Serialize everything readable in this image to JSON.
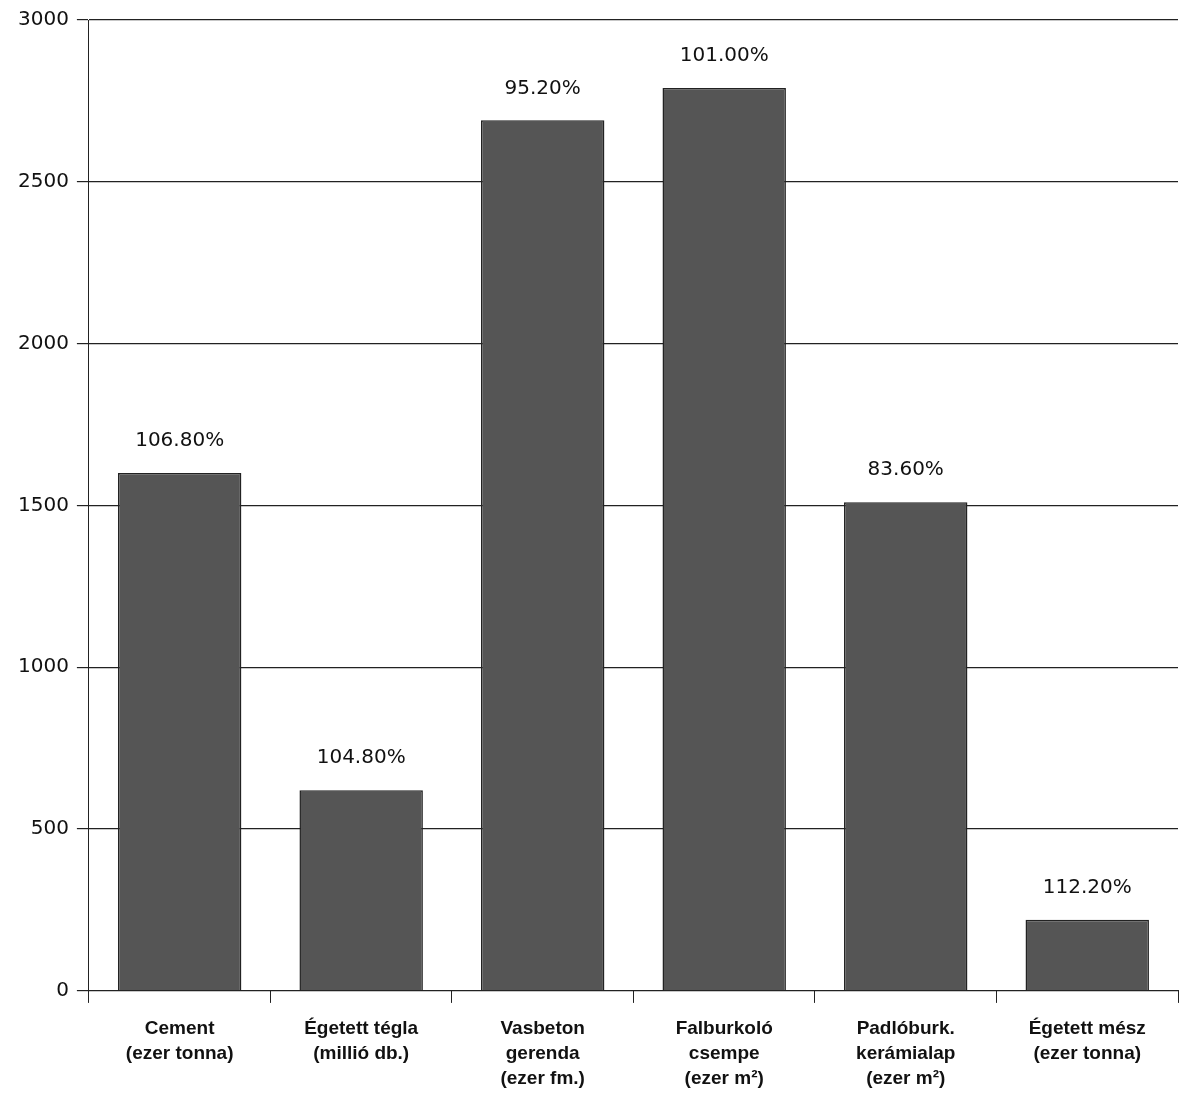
{
  "chart_data": {
    "type": "bar",
    "categories": [
      "Cement\n(ezer tonna)",
      "Égetett tégla\n(millió db.)",
      "Vasbeton\ngerenda\n(ezer fm.)",
      "Falburkoló\ncsempe\n(ezer m²)",
      "Padlóburk.\nkerámialap\n(ezer m²)",
      "Égetett mész\n(ezer tonna)"
    ],
    "values": [
      1600,
      620,
      2690,
      2790,
      1510,
      220
    ],
    "annotations": [
      {
        "text": "106.80%",
        "x": "Cement\n(ezer tonna)",
        "y": 1600
      },
      {
        "text": "104.80%",
        "x": "Égetett tégla\n(millió db.)",
        "y": 620
      },
      {
        "text": "95.20%",
        "x": "Vasbeton\ngerenda\n(ezer fm.)",
        "y": 2690
      },
      {
        "text": "101.00%",
        "x": "Falburkoló\ncsempe\n(ezer m²)",
        "y": 2790
      },
      {
        "text": "83.60%",
        "x": "Padlóburk.\nkerámialap\n(ezer m²)",
        "y": 1510
      },
      {
        "text": "112.20%",
        "x": "Égetett mész\n(ezer tonna)",
        "y": 220
      }
    ],
    "color": "#555555",
    "ylim": [
      0,
      3000
    ],
    "yticks": [
      0,
      500,
      1000,
      1500,
      2000,
      2500,
      3000
    ],
    "grid": "y",
    "legend": false
  }
}
